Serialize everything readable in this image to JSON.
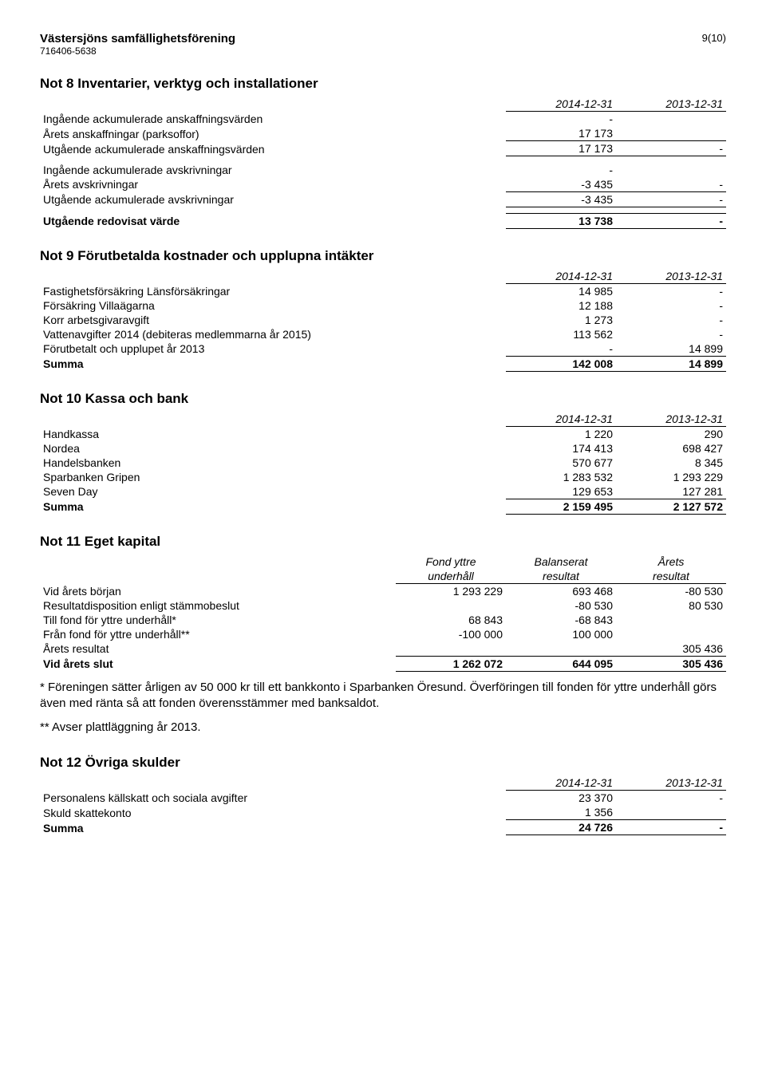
{
  "header": {
    "org_name": "Västersjöns samfällighetsförening",
    "org_id": "716406-5638",
    "page_num": "9(10)"
  },
  "not8": {
    "title": "Not 8  Inventarier, verktyg och installationer",
    "cols": [
      "2014-12-31",
      "2013-12-31"
    ],
    "rows": [
      {
        "label": "Ingående ackumulerade anskaffningsvärden",
        "a": "-",
        "b": ""
      },
      {
        "label": "Årets anskaffningar (parksoffor)",
        "a": "17 173",
        "b": ""
      },
      {
        "label": "Utgående ackumulerade anskaffningsvärden",
        "a": "17 173",
        "b": "-"
      },
      {
        "label": "Ingående ackumulerade avskrivningar",
        "a": "-",
        "b": ""
      },
      {
        "label": "Årets avskrivningar",
        "a": "-3 435",
        "b": "-"
      },
      {
        "label": "Utgående ackumulerade avskrivningar",
        "a": "-3 435",
        "b": "-"
      },
      {
        "label": "Utgående redovisat värde",
        "a": "13 738",
        "b": "-"
      }
    ]
  },
  "not9": {
    "title": "Not 9  Förutbetalda kostnader och upplupna intäkter",
    "cols": [
      "2014-12-31",
      "2013-12-31"
    ],
    "rows": [
      {
        "label": "Fastighetsförsäkring Länsförsäkringar",
        "a": "14 985",
        "b": "-"
      },
      {
        "label": "Försäkring Villaägarna",
        "a": "12 188",
        "b": "-"
      },
      {
        "label": "Korr arbetsgivaravgift",
        "a": "1 273",
        "b": "-"
      },
      {
        "label": "Vattenavgifter 2014 (debiteras medlemmarna år 2015)",
        "a": "113 562",
        "b": "-"
      },
      {
        "label": "Förutbetalt och upplupet år 2013",
        "a": "-",
        "b": "14 899"
      }
    ],
    "sum": {
      "label": "Summa",
      "a": "142 008",
      "b": "14 899"
    }
  },
  "not10": {
    "title": "Not 10  Kassa och bank",
    "cols": [
      "2014-12-31",
      "2013-12-31"
    ],
    "rows": [
      {
        "label": "Handkassa",
        "a": "1 220",
        "b": "290"
      },
      {
        "label": "Nordea",
        "a": "174 413",
        "b": "698 427"
      },
      {
        "label": "Handelsbanken",
        "a": "570 677",
        "b": "8 345"
      },
      {
        "label": "Sparbanken Gripen",
        "a": "1 283 532",
        "b": "1 293 229"
      },
      {
        "label": "Seven Day",
        "a": "129 653",
        "b": "127 281"
      }
    ],
    "sum": {
      "label": "Summa",
      "a": "2 159 495",
      "b": "2 127 572"
    }
  },
  "not11": {
    "title": "Not 11  Eget kapital",
    "col_heads": {
      "a1": "Fond yttre",
      "a2": "underhåll",
      "b1": "Balanserat",
      "b2": "resultat",
      "c1": "Årets",
      "c2": "resultat"
    },
    "rows": [
      {
        "label": "Vid årets början",
        "a": "1 293 229",
        "b": "693 468",
        "c": "-80 530"
      },
      {
        "label": "Resultatdisposition enligt stämmobeslut",
        "a": "",
        "b": "-80 530",
        "c": "80 530"
      },
      {
        "label": "Till fond för yttre underhåll*",
        "a": "68 843",
        "b": "-68 843",
        "c": ""
      },
      {
        "label": "Från fond för yttre underhåll**",
        "a": "-100 000",
        "b": "100 000",
        "c": ""
      },
      {
        "label": "Årets resultat",
        "a": "",
        "b": "",
        "c": "305 436"
      }
    ],
    "sum": {
      "label": "Vid årets slut",
      "a": "1 262 072",
      "b": "644 095",
      "c": "305 436"
    },
    "footnote1": "* Föreningen sätter årligen av 50 000 kr till ett bankkonto i Sparbanken Öresund. Överföringen till fonden för yttre underhåll görs även med ränta så att fonden överensstämmer med banksaldot.",
    "footnote2": "** Avser plattläggning år 2013."
  },
  "not12": {
    "title": "Not 12  Övriga skulder",
    "cols": [
      "2014-12-31",
      "2013-12-31"
    ],
    "rows": [
      {
        "label": "Personalens källskatt och sociala avgifter",
        "a": "23 370",
        "b": "-"
      },
      {
        "label": "Skuld skattekonto",
        "a": "1 356",
        "b": ""
      }
    ],
    "sum": {
      "label": "Summa",
      "a": "24 726",
      "b": "-"
    }
  }
}
